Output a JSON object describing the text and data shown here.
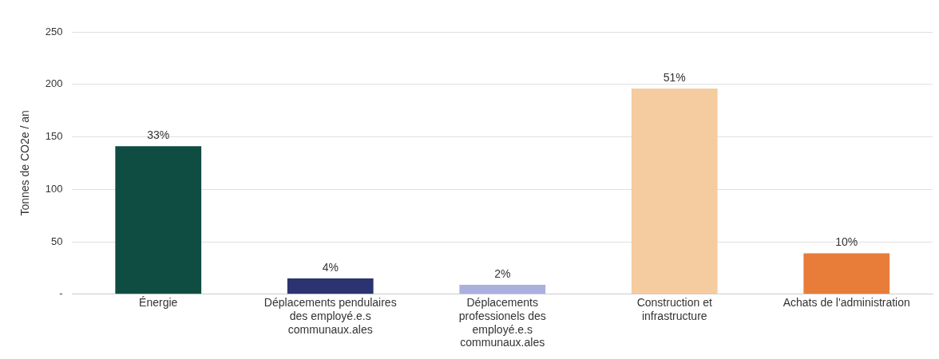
{
  "chart_data": {
    "type": "bar",
    "ylabel": "Tonnes de CO2e / an",
    "categories": [
      "Énergie",
      "Déplacements pendulaires des employé.e.s communaux.ales",
      "Déplacements professionels des employé.e.s communaux.ales",
      "Construction et infrastructure",
      "Achats de l'administration"
    ],
    "values": [
      141,
      15,
      9,
      196,
      39
    ],
    "colors": [
      "#0f4c41",
      "#2b3370",
      "#a9b0dd",
      "#f5cba0",
      "#e87d3a"
    ],
    "annotations": [
      {
        "text": "33%",
        "x": "Énergie",
        "y": 141
      },
      {
        "text": "4%",
        "x": "Déplacements pendulaires des employé.e.s communaux.ales",
        "y": 15
      },
      {
        "text": "2%",
        "x": "Déplacements professionels des employé.e.s communaux.ales",
        "y": 9
      },
      {
        "text": "51%",
        "x": "Construction et infrastructure",
        "y": 196
      },
      {
        "text": "10%",
        "x": "Achats de l'administration",
        "y": 39
      }
    ],
    "ylim": [
      0,
      250
    ],
    "yticks": [
      {
        "value": 0,
        "label": "-"
      },
      50,
      100,
      150,
      200,
      250
    ],
    "grid": "y"
  }
}
